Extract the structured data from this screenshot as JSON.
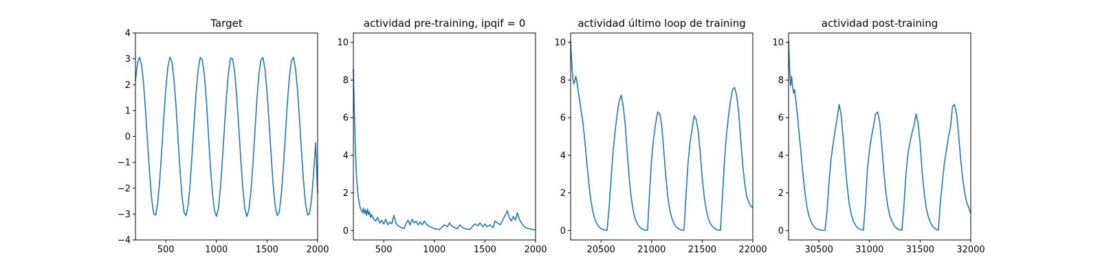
{
  "chart_data": [
    {
      "type": "line",
      "title": "Target",
      "xlim": [
        200,
        2000
      ],
      "ylim": [
        -4,
        4
      ],
      "xticks": [
        500,
        1000,
        1500,
        2000
      ],
      "yticks": [
        -4,
        -3,
        -2,
        -1,
        0,
        1,
        2,
        3,
        4
      ],
      "series": [
        {
          "color": "#1f77b4",
          "x": [
            200,
            220,
            240,
            260,
            280,
            300,
            320,
            340,
            360,
            380,
            400,
            420,
            440,
            460,
            480,
            500,
            520,
            540,
            560,
            580,
            600,
            620,
            640,
            660,
            680,
            700,
            720,
            740,
            760,
            780,
            800,
            820,
            840,
            860,
            880,
            900,
            920,
            940,
            960,
            980,
            1000,
            1020,
            1040,
            1060,
            1080,
            1100,
            1120,
            1140,
            1160,
            1180,
            1200,
            1220,
            1240,
            1260,
            1280,
            1300,
            1320,
            1340,
            1360,
            1380,
            1400,
            1420,
            1440,
            1460,
            1480,
            1500,
            1520,
            1540,
            1560,
            1580,
            1600,
            1620,
            1640,
            1660,
            1680,
            1700,
            1720,
            1740,
            1760,
            1780,
            1800,
            1820,
            1840,
            1860,
            1880,
            1900,
            1920,
            1940,
            1960,
            1980,
            2000
          ],
          "y": [
            2.15,
            2.83,
            3.06,
            2.79,
            2.07,
            1.0,
            -0.24,
            -1.43,
            -2.41,
            -2.98,
            -3.04,
            -2.58,
            -1.7,
            -0.52,
            0.73,
            1.85,
            2.68,
            3.06,
            2.9,
            2.25,
            1.22,
            -0.04,
            -1.28,
            -2.3,
            -2.93,
            -3.06,
            -2.67,
            -1.84,
            -0.68,
            0.57,
            1.72,
            2.6,
            3.05,
            2.96,
            2.42,
            1.43,
            0.16,
            -1.1,
            -2.16,
            -2.86,
            -3.09,
            -2.77,
            -1.98,
            -0.84,
            0.4,
            1.58,
            2.5,
            3.03,
            3.0,
            2.5,
            1.58,
            0.4,
            -0.84,
            -1.98,
            -2.77,
            -3.09,
            -2.86,
            -2.16,
            -1.1,
            0.16,
            1.43,
            2.42,
            2.96,
            3.05,
            2.6,
            1.72,
            0.57,
            -0.68,
            -1.84,
            -2.67,
            -3.06,
            -2.93,
            -2.3,
            -1.28,
            -0.04,
            1.22,
            2.25,
            2.9,
            3.06,
            2.68,
            1.85,
            0.73,
            -0.52,
            -1.7,
            -2.58,
            -3.04,
            -2.98,
            -2.41,
            -1.43,
            -0.24,
            -2.2
          ]
        }
      ]
    },
    {
      "type": "line",
      "title": "actividad pre-training, ipqif = 0",
      "xlim": [
        200,
        2000
      ],
      "ylim": [
        -0.5,
        10.5
      ],
      "xticks": [
        500,
        1000,
        1500,
        2000
      ],
      "yticks": [
        0,
        2,
        4,
        6,
        8,
        10
      ],
      "series": [
        {
          "color": "#1f77b4",
          "x": [
            200,
            210,
            220,
            230,
            240,
            250,
            260,
            270,
            280,
            290,
            300,
            310,
            320,
            330,
            340,
            350,
            360,
            370,
            380,
            400,
            420,
            440,
            460,
            480,
            500,
            520,
            540,
            560,
            580,
            600,
            620,
            640,
            660,
            680,
            700,
            720,
            740,
            760,
            780,
            800,
            820,
            840,
            860,
            880,
            900,
            920,
            940,
            960,
            980,
            1000,
            1050,
            1100,
            1130,
            1150,
            1170,
            1200,
            1230,
            1250,
            1280,
            1300,
            1350,
            1400,
            1430,
            1450,
            1480,
            1500,
            1520,
            1550,
            1580,
            1600,
            1650,
            1700,
            1720,
            1740,
            1760,
            1780,
            1800,
            1820,
            1840,
            1860,
            1880,
            1900,
            1950,
            2000
          ],
          "y": [
            8.6,
            6.2,
            4.3,
            3.0,
            2.2,
            1.7,
            1.4,
            1.15,
            1.05,
            0.95,
            1.2,
            0.9,
            1.1,
            0.8,
            1.15,
            0.85,
            1.0,
            0.7,
            0.85,
            0.6,
            0.5,
            0.7,
            0.4,
            0.55,
            0.35,
            0.6,
            0.3,
            0.45,
            0.35,
            0.8,
            0.4,
            0.25,
            0.2,
            0.15,
            0.1,
            0.35,
            0.55,
            0.3,
            0.6,
            0.4,
            0.5,
            0.3,
            0.45,
            0.3,
            0.5,
            0.35,
            0.25,
            0.2,
            0.15,
            0.1,
            0.05,
            0.3,
            0.2,
            0.4,
            0.25,
            0.15,
            0.1,
            0.3,
            0.15,
            0.1,
            0.05,
            0.35,
            0.25,
            0.4,
            0.2,
            0.35,
            0.2,
            0.3,
            0.15,
            0.5,
            0.3,
            0.8,
            1.05,
            0.7,
            0.5,
            0.75,
            0.55,
            0.95,
            0.6,
            0.4,
            0.25,
            0.15,
            0.08,
            0.03
          ]
        }
      ]
    },
    {
      "type": "line",
      "title": "actividad último loop de training",
      "xlim": [
        20200,
        22000
      ],
      "ylim": [
        -0.5,
        10.5
      ],
      "xticks": [
        20500,
        21000,
        21500,
        22000
      ],
      "yticks": [
        0,
        2,
        4,
        6,
        8,
        10
      ],
      "series": [
        {
          "color": "#1f77b4",
          "x": [
            20200,
            20210,
            20220,
            20230,
            20240,
            20250,
            20260,
            20270,
            20280,
            20290,
            20300,
            20320,
            20340,
            20360,
            20380,
            20400,
            20420,
            20440,
            20460,
            20480,
            20500,
            20520,
            20540,
            20560,
            20580,
            20600,
            20620,
            20640,
            20660,
            20680,
            20700,
            20720,
            20740,
            20760,
            20780,
            20800,
            20820,
            20840,
            20860,
            20880,
            20900,
            20920,
            20940,
            20960,
            20980,
            21000,
            21020,
            21040,
            21060,
            21080,
            21100,
            21120,
            21140,
            21160,
            21180,
            21200,
            21220,
            21240,
            21260,
            21280,
            21300,
            21320,
            21340,
            21360,
            21380,
            21400,
            21420,
            21440,
            21460,
            21480,
            21500,
            21520,
            21540,
            21560,
            21580,
            21600,
            21620,
            21640,
            21660,
            21680,
            21700,
            21720,
            21740,
            21760,
            21780,
            21800,
            21820,
            21840,
            21860,
            21880,
            21900,
            21920,
            21940,
            21960,
            21980,
            22000
          ],
          "y": [
            10.1,
            9.0,
            8.2,
            7.8,
            7.9,
            8.2,
            8.0,
            7.6,
            7.2,
            6.9,
            6.5,
            5.8,
            4.8,
            3.6,
            2.5,
            1.6,
            1.0,
            0.6,
            0.35,
            0.2,
            0.1,
            0.05,
            0.02,
            0.01,
            1.2,
            2.8,
            4.2,
            5.3,
            6.2,
            6.9,
            7.2,
            6.6,
            5.6,
            4.1,
            2.7,
            1.7,
            1.0,
            0.6,
            0.35,
            0.2,
            0.1,
            0.05,
            0.02,
            0.01,
            2.0,
            3.8,
            4.9,
            5.7,
            6.3,
            6.2,
            5.6,
            4.3,
            2.9,
            1.8,
            1.1,
            0.65,
            0.38,
            0.22,
            0.12,
            0.06,
            0.02,
            0.01,
            1.9,
            3.6,
            4.7,
            5.4,
            6.1,
            5.9,
            5.3,
            4.2,
            2.8,
            1.8,
            1.1,
            0.65,
            0.38,
            0.22,
            0.12,
            0.06,
            0.02,
            0.01,
            1.8,
            3.7,
            5.1,
            6.1,
            6.9,
            7.5,
            7.6,
            7.2,
            6.3,
            4.9,
            3.5,
            2.5,
            1.8,
            1.5,
            1.3,
            1.2
          ]
        }
      ]
    },
    {
      "type": "line",
      "title": "actividad post-training",
      "xlim": [
        30200,
        32000
      ],
      "ylim": [
        -0.5,
        10.5
      ],
      "xticks": [
        30500,
        31000,
        31500,
        32000
      ],
      "yticks": [
        0,
        2,
        4,
        6,
        8,
        10
      ],
      "series": [
        {
          "color": "#1f77b4",
          "x": [
            30200,
            30210,
            30220,
            30230,
            30240,
            30250,
            30260,
            30270,
            30280,
            30290,
            30300,
            30320,
            30340,
            30360,
            30380,
            30400,
            30420,
            30440,
            30460,
            30480,
            30500,
            30520,
            30540,
            30560,
            30580,
            30600,
            30620,
            30640,
            30660,
            30680,
            30700,
            30720,
            30740,
            30760,
            30780,
            30800,
            30820,
            30840,
            30860,
            30880,
            30900,
            30920,
            30940,
            30960,
            30980,
            31000,
            31020,
            31040,
            31060,
            31080,
            31100,
            31120,
            31140,
            31160,
            31180,
            31200,
            31220,
            31240,
            31260,
            31280,
            31300,
            31320,
            31340,
            31360,
            31380,
            31400,
            31420,
            31440,
            31460,
            31480,
            31500,
            31520,
            31540,
            31560,
            31580,
            31600,
            31620,
            31640,
            31660,
            31680,
            31700,
            31720,
            31740,
            31760,
            31780,
            31800,
            31820,
            31840,
            31860,
            31880,
            31900,
            31920,
            31940,
            31960,
            31980,
            32000
          ],
          "y": [
            10.1,
            8.6,
            7.7,
            8.2,
            7.6,
            7.3,
            7.5,
            7.0,
            6.5,
            6.0,
            5.4,
            4.3,
            3.1,
            2.1,
            1.3,
            0.8,
            0.5,
            0.3,
            0.15,
            0.08,
            0.04,
            0.02,
            0.01,
            0.01,
            1.0,
            2.6,
            3.8,
            4.6,
            5.3,
            6.0,
            6.7,
            6.1,
            4.9,
            3.5,
            2.3,
            1.4,
            0.85,
            0.5,
            0.3,
            0.15,
            0.08,
            0.04,
            0.02,
            1.5,
            3.3,
            4.3,
            5.0,
            5.6,
            6.2,
            6.3,
            5.8,
            4.6,
            3.2,
            2.1,
            1.3,
            0.8,
            0.5,
            0.3,
            0.15,
            0.08,
            0.04,
            0.02,
            1.3,
            3.0,
            4.1,
            4.7,
            5.2,
            5.6,
            6.2,
            5.7,
            4.6,
            3.1,
            2.0,
            1.2,
            0.75,
            0.45,
            0.25,
            0.13,
            0.06,
            0.02,
            1.5,
            2.6,
            3.6,
            4.3,
            5.0,
            5.5,
            6.6,
            6.7,
            6.2,
            5.1,
            3.8,
            2.8,
            2.0,
            1.5,
            1.2,
            0.9
          ]
        }
      ]
    }
  ]
}
